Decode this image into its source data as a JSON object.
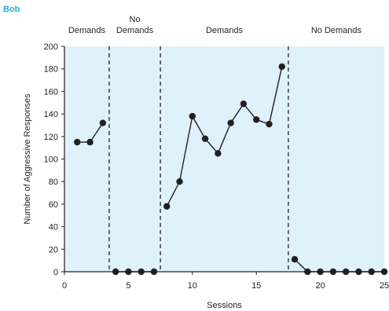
{
  "chart_data": {
    "type": "line",
    "subject_label": "Bob",
    "xlabel": "Sessions",
    "ylabel": "Number of Aggressive Responses",
    "xlim": [
      0,
      25
    ],
    "ylim": [
      0,
      200
    ],
    "x_ticks": [
      0,
      5,
      10,
      15,
      20,
      25
    ],
    "y_ticks": [
      0,
      20,
      40,
      60,
      80,
      100,
      120,
      140,
      160,
      180,
      200
    ],
    "background_color": "#dff1fa",
    "line_color": "#231f20",
    "phase_change_lines": [
      3.5,
      7.5,
      17.5
    ],
    "phases": [
      {
        "label": "Demands",
        "start": 0,
        "end": 3.5
      },
      {
        "label": "No Demands",
        "start": 3.5,
        "end": 7.5
      },
      {
        "label": "Demands",
        "start": 7.5,
        "end": 17.5
      },
      {
        "label": "No Demands",
        "start": 17.5,
        "end": 25
      }
    ],
    "segments": [
      {
        "x": [
          1,
          2,
          3
        ],
        "y": [
          115,
          115,
          132
        ]
      },
      {
        "x": [
          4,
          5,
          6,
          7
        ],
        "y": [
          0,
          0,
          0,
          0
        ]
      },
      {
        "x": [
          8,
          9,
          10,
          11,
          12,
          13,
          14,
          15,
          16,
          17
        ],
        "y": [
          58,
          80,
          138,
          118,
          105,
          132,
          149,
          135,
          131,
          182
        ]
      },
      {
        "x": [
          18,
          19,
          20,
          21,
          22,
          23,
          24,
          25
        ],
        "y": [
          11,
          0,
          0,
          0,
          0,
          0,
          0,
          0
        ]
      }
    ]
  }
}
